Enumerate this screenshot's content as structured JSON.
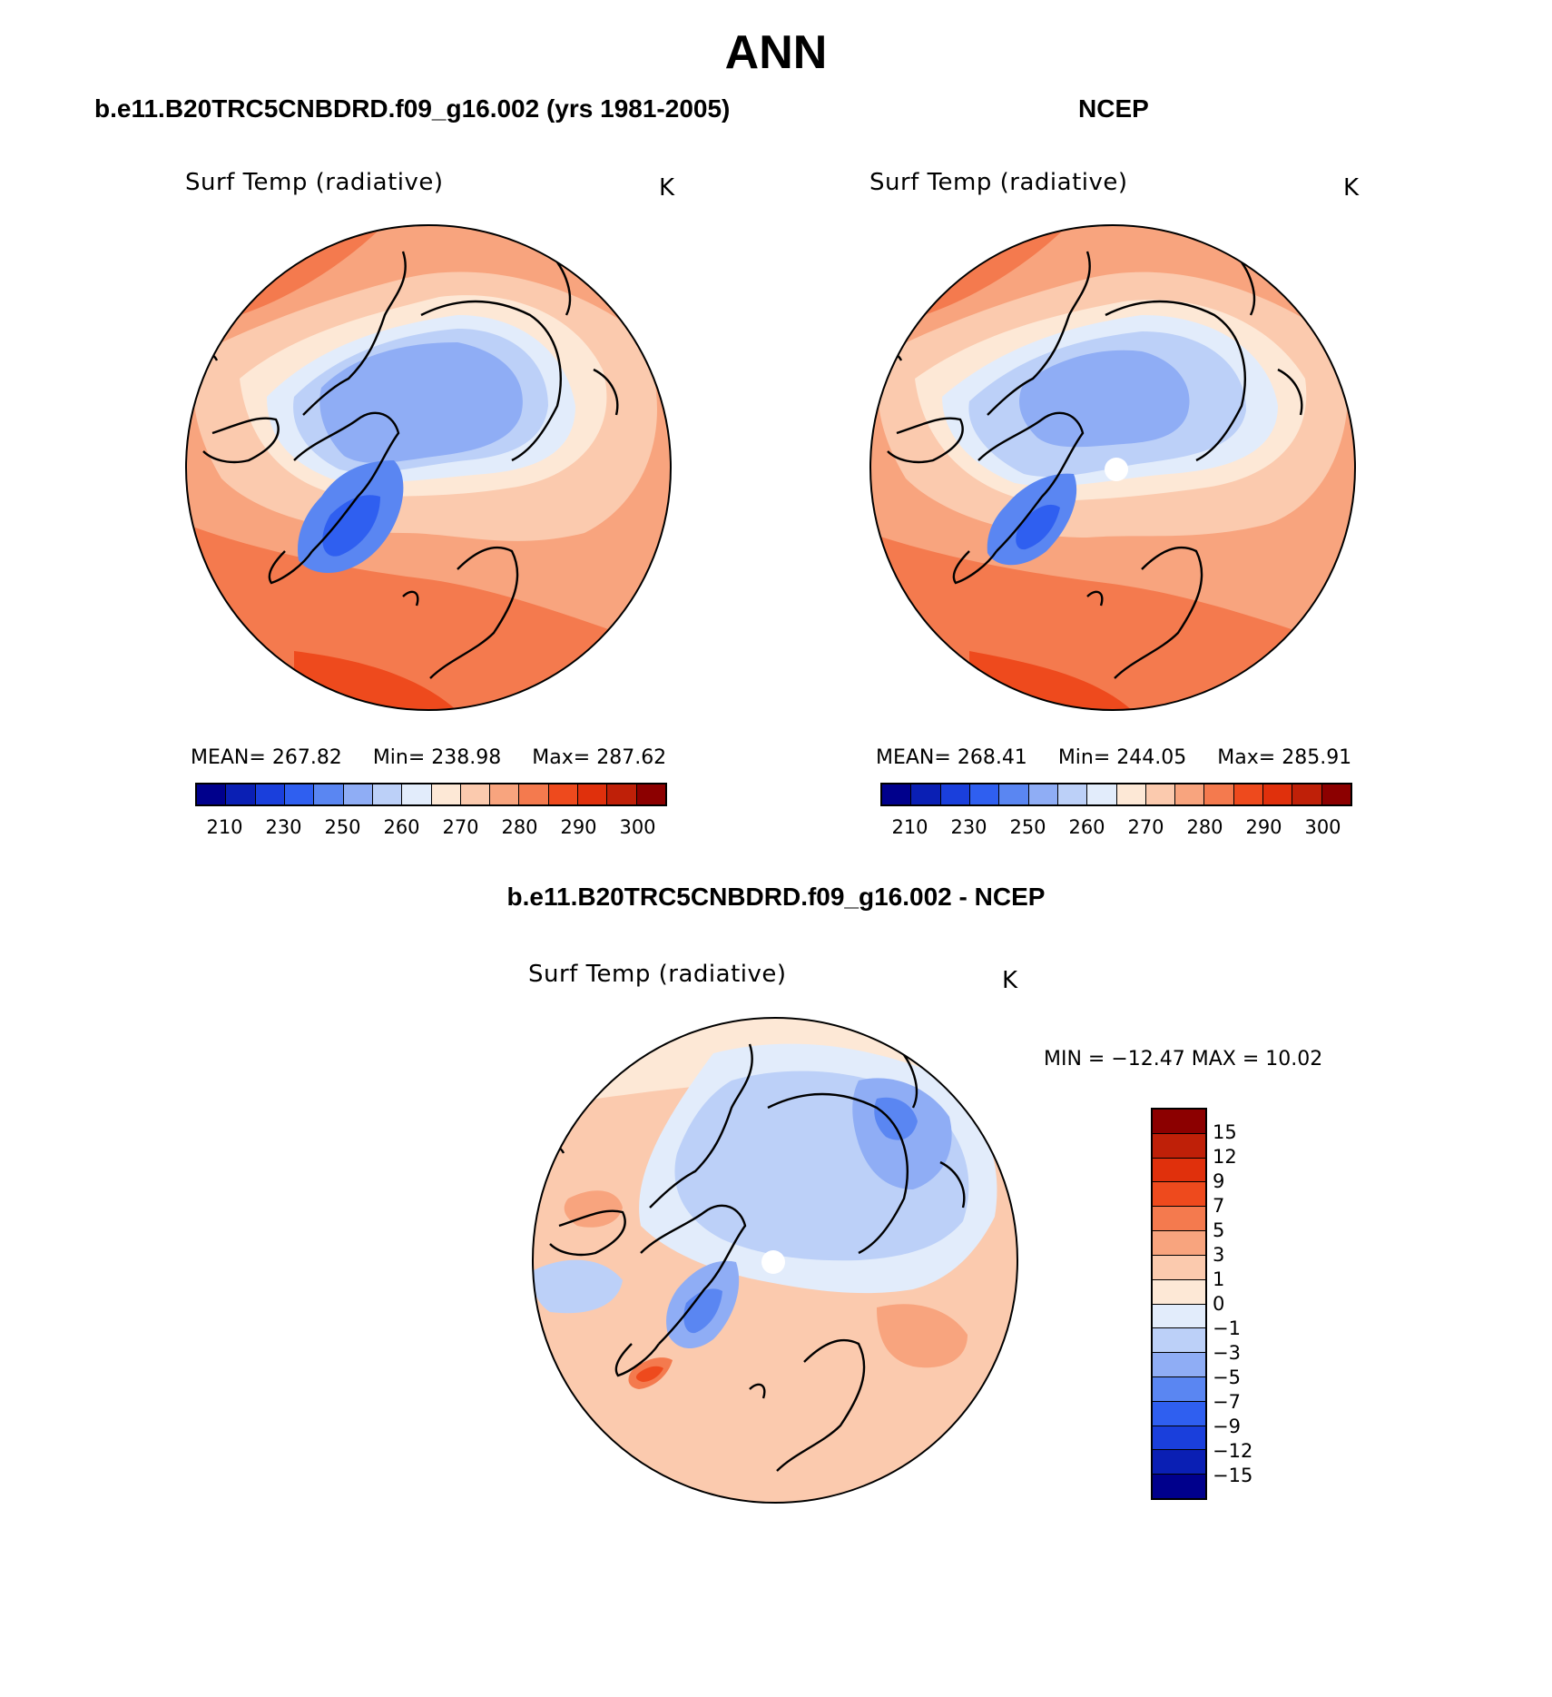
{
  "figure": {
    "title": "ANN"
  },
  "panel_model": {
    "case_title": "b.e11.B20TRC5CNBDRD.f09_g16.002 (yrs 1981-2005)",
    "variable": "Surf Temp (radiative)",
    "units": "K",
    "stats": {
      "mean_label": "MEAN=",
      "mean": "267.82",
      "min_label": "Min=",
      "min": "238.98",
      "max_label": "Max=",
      "max": "287.62"
    }
  },
  "panel_obs": {
    "case_title": "NCEP",
    "variable": "Surf Temp (radiative)",
    "units": "K",
    "stats": {
      "mean_label": "MEAN=",
      "mean": "268.41",
      "min_label": "Min=",
      "min": "244.05",
      "max_label": "Max=",
      "max": "285.91"
    }
  },
  "panel_diff": {
    "case_title": "b.e11.B20TRC5CNBDRD.f09_g16.002 - NCEP",
    "variable": "Surf Temp (radiative)",
    "units": "K",
    "minmax_text": "MIN = −12.47 MAX =   10.02"
  },
  "colorbar_abs": {
    "tick_labels": [
      "210",
      "230",
      "250",
      "260",
      "270",
      "280",
      "290",
      "300"
    ],
    "colors": [
      "#00008c",
      "#0a1fb4",
      "#1a3fdc",
      "#2f5ff0",
      "#5a86f2",
      "#8fadf5",
      "#bcd0f8",
      "#e2ecfb",
      "#fde8d6",
      "#fbcaae",
      "#f8a47e",
      "#f47a4e",
      "#ee4a1d",
      "#e0300c",
      "#bf2008",
      "#8c0000"
    ]
  },
  "colorbar_diff": {
    "tick_labels": [
      "15",
      "12",
      "9",
      "7",
      "5",
      "3",
      "1",
      "0",
      "−1",
      "−3",
      "−5",
      "−7",
      "−9",
      "−12",
      "−15"
    ],
    "colors": [
      "#8c0000",
      "#bf2008",
      "#e0300c",
      "#ee4a1d",
      "#f47a4e",
      "#f8a47e",
      "#fbcaae",
      "#fde8d6",
      "#e2ecfb",
      "#bcd0f8",
      "#8fadf5",
      "#5a86f2",
      "#2f5ff0",
      "#1a3fdc",
      "#0a1fb4",
      "#00008c"
    ]
  },
  "chart_data": [
    {
      "type": "heatmap",
      "projection": "north polar stereographic",
      "title": "b.e11.B20TRC5CNBDRD.f09_g16.002 (yrs 1981-2005)",
      "field": "Surf Temp (radiative)",
      "units": "K",
      "mean": 267.82,
      "min": 238.98,
      "max": 287.62,
      "contour_levels": [
        210,
        220,
        230,
        240,
        250,
        255,
        260,
        265,
        270,
        275,
        280,
        285,
        290,
        295,
        300
      ]
    },
    {
      "type": "heatmap",
      "projection": "north polar stereographic",
      "title": "NCEP",
      "field": "Surf Temp (radiative)",
      "units": "K",
      "mean": 268.41,
      "min": 244.05,
      "max": 285.91,
      "contour_levels": [
        210,
        220,
        230,
        240,
        250,
        255,
        260,
        265,
        270,
        275,
        280,
        285,
        290,
        295,
        300
      ]
    },
    {
      "type": "heatmap",
      "projection": "north polar stereographic",
      "title": "b.e11.B20TRC5CNBDRD.f09_g16.002 - NCEP",
      "field": "Surf Temp (radiative)",
      "units": "K",
      "min": -12.47,
      "max": 10.02,
      "contour_levels": [
        -15,
        -12,
        -9,
        -7,
        -5,
        -3,
        -1,
        0,
        1,
        3,
        5,
        7,
        9,
        12,
        15
      ]
    }
  ]
}
